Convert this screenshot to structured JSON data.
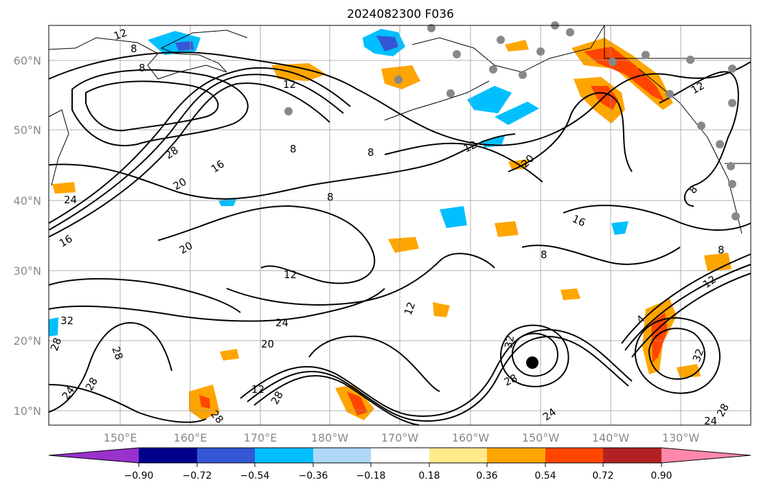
{
  "title": "2024082300 F036",
  "map": {
    "lon_labels": [
      "150°E",
      "160°E",
      "170°E",
      "180°W",
      "170°W",
      "160°W",
      "150°W",
      "140°W",
      "130°W"
    ],
    "lat_labels": [
      "60°N",
      "50°N",
      "40°N",
      "30°N",
      "20°N",
      "10°N"
    ],
    "contour_labels": [
      "12",
      "8",
      "8",
      "12",
      "28",
      "16",
      "20",
      "24",
      "16",
      "8",
      "8",
      "12",
      "20",
      "12",
      "8",
      "16",
      "20",
      "12",
      "8",
      "8",
      "8",
      "12",
      "24",
      "20",
      "32",
      "28",
      "28",
      "28",
      "24",
      "32",
      "28",
      "12",
      "28",
      "28",
      "24",
      "32",
      "28",
      "24",
      "12",
      "4"
    ]
  },
  "colorbar": {
    "tick_labels": [
      "−0.90",
      "−0.72",
      "−0.54",
      "−0.36",
      "−0.18",
      "0.18",
      "0.36",
      "0.54",
      "0.72",
      "0.90"
    ],
    "colors": [
      "#9932cc",
      "#00008b",
      "#3457d5",
      "#00bfff",
      "#add8f7",
      "#ffffff",
      "#ffea8c",
      "#ffa500",
      "#ff4500",
      "#b22222",
      "#ff88aa"
    ]
  },
  "markers": {
    "station_color": "#888888",
    "cyclone_color": "#000000"
  }
}
